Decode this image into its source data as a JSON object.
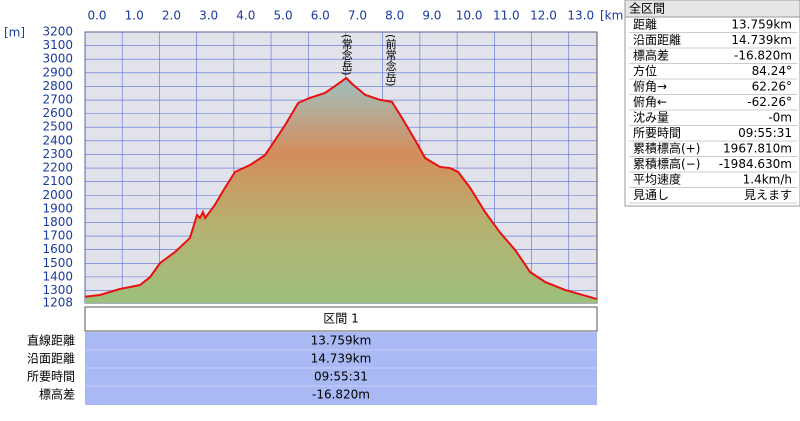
{
  "chart_data": {
    "type": "area",
    "y_label": "[m]",
    "x_label": "[km]",
    "x": [
      0,
      0.4,
      0.94,
      1.48,
      1.75,
      2.02,
      2.42,
      2.82,
      3.01,
      3.09,
      3.17,
      3.23,
      3.49,
      3.76,
      4.03,
      4.44,
      4.84,
      5.11,
      5.38,
      5.73,
      6.05,
      6.45,
      6.8,
      7.02,
      7.18,
      7.53,
      7.93,
      8.25,
      8.52,
      8.87,
      9.14,
      9.54,
      9.81,
      10.03,
      10.35,
      10.75,
      11.16,
      11.56,
      11.96,
      12.37,
      12.9,
      13.759
    ],
    "values": [
      1254,
      1267,
      1311,
      1340,
      1399,
      1502,
      1583,
      1686,
      1855,
      1833,
      1877,
      1833,
      1929,
      2054,
      2171,
      2223,
      2296,
      2406,
      2517,
      2679,
      2716,
      2752,
      2818,
      2862,
      2818,
      2738,
      2701,
      2686,
      2568,
      2406,
      2274,
      2208,
      2200,
      2171,
      2054,
      1877,
      1723,
      1598,
      1436,
      1362,
      1304,
      1237
    ],
    "color": "#e81010",
    "xlim": [
      0,
      13.759
    ],
    "xticks": [
      {
        "value": 0,
        "label": "0.0"
      },
      {
        "value": 1,
        "label": "1.0"
      },
      {
        "value": 2,
        "label": "2.0"
      },
      {
        "value": 3,
        "label": "3.0"
      },
      {
        "value": 4,
        "label": "4.0"
      },
      {
        "value": 5,
        "label": "5.0"
      },
      {
        "value": 6,
        "label": "6.0"
      },
      {
        "value": 7,
        "label": "7.0"
      },
      {
        "value": 8,
        "label": "8.0"
      },
      {
        "value": 9,
        "label": "9.0"
      },
      {
        "value": 10,
        "label": "10.0"
      },
      {
        "value": 11,
        "label": "11.0"
      },
      {
        "value": 12,
        "label": "12.0"
      },
      {
        "value": 13,
        "label": "13.0"
      }
    ],
    "ylim": [
      1208,
      3200
    ],
    "yticks": [
      1208,
      1300,
      1400,
      1500,
      1600,
      1700,
      1800,
      1900,
      2000,
      2100,
      2200,
      2300,
      2400,
      2500,
      2600,
      2700,
      2800,
      2900,
      3000,
      3100,
      3200
    ],
    "grid": true,
    "annotations": [
      {
        "text": "(常念岳)",
        "x": 7.02
      },
      {
        "text": "(前常念岳)",
        "x": 8.2
      }
    ]
  },
  "section_table": {
    "title": "区間 1",
    "rows": [
      [
        "直線距離",
        "13.759km"
      ],
      [
        "沿面距離",
        "14.739km"
      ],
      [
        "所要時間",
        "09:55:31"
      ],
      [
        "標高差",
        "-16.820m"
      ]
    ]
  },
  "info_panel": {
    "title": "全区間",
    "rows": [
      [
        "距離",
        "13.759km"
      ],
      [
        "沿面距離",
        "14.739km"
      ],
      [
        "標高差",
        "-16.820m"
      ],
      [
        "方位",
        "84.24°"
      ],
      [
        "俯角→",
        "62.26°"
      ],
      [
        "俯角←",
        "-62.26°"
      ],
      [
        "沈み量",
        "-0m"
      ],
      [
        "所要時間",
        "09:55:31"
      ],
      [
        "累積標高(+)",
        "1967.810m"
      ],
      [
        "累積標高(−)",
        "-1984.630m"
      ],
      [
        "平均速度",
        "1.4km/h"
      ],
      [
        "見通し",
        "見えます"
      ]
    ]
  }
}
